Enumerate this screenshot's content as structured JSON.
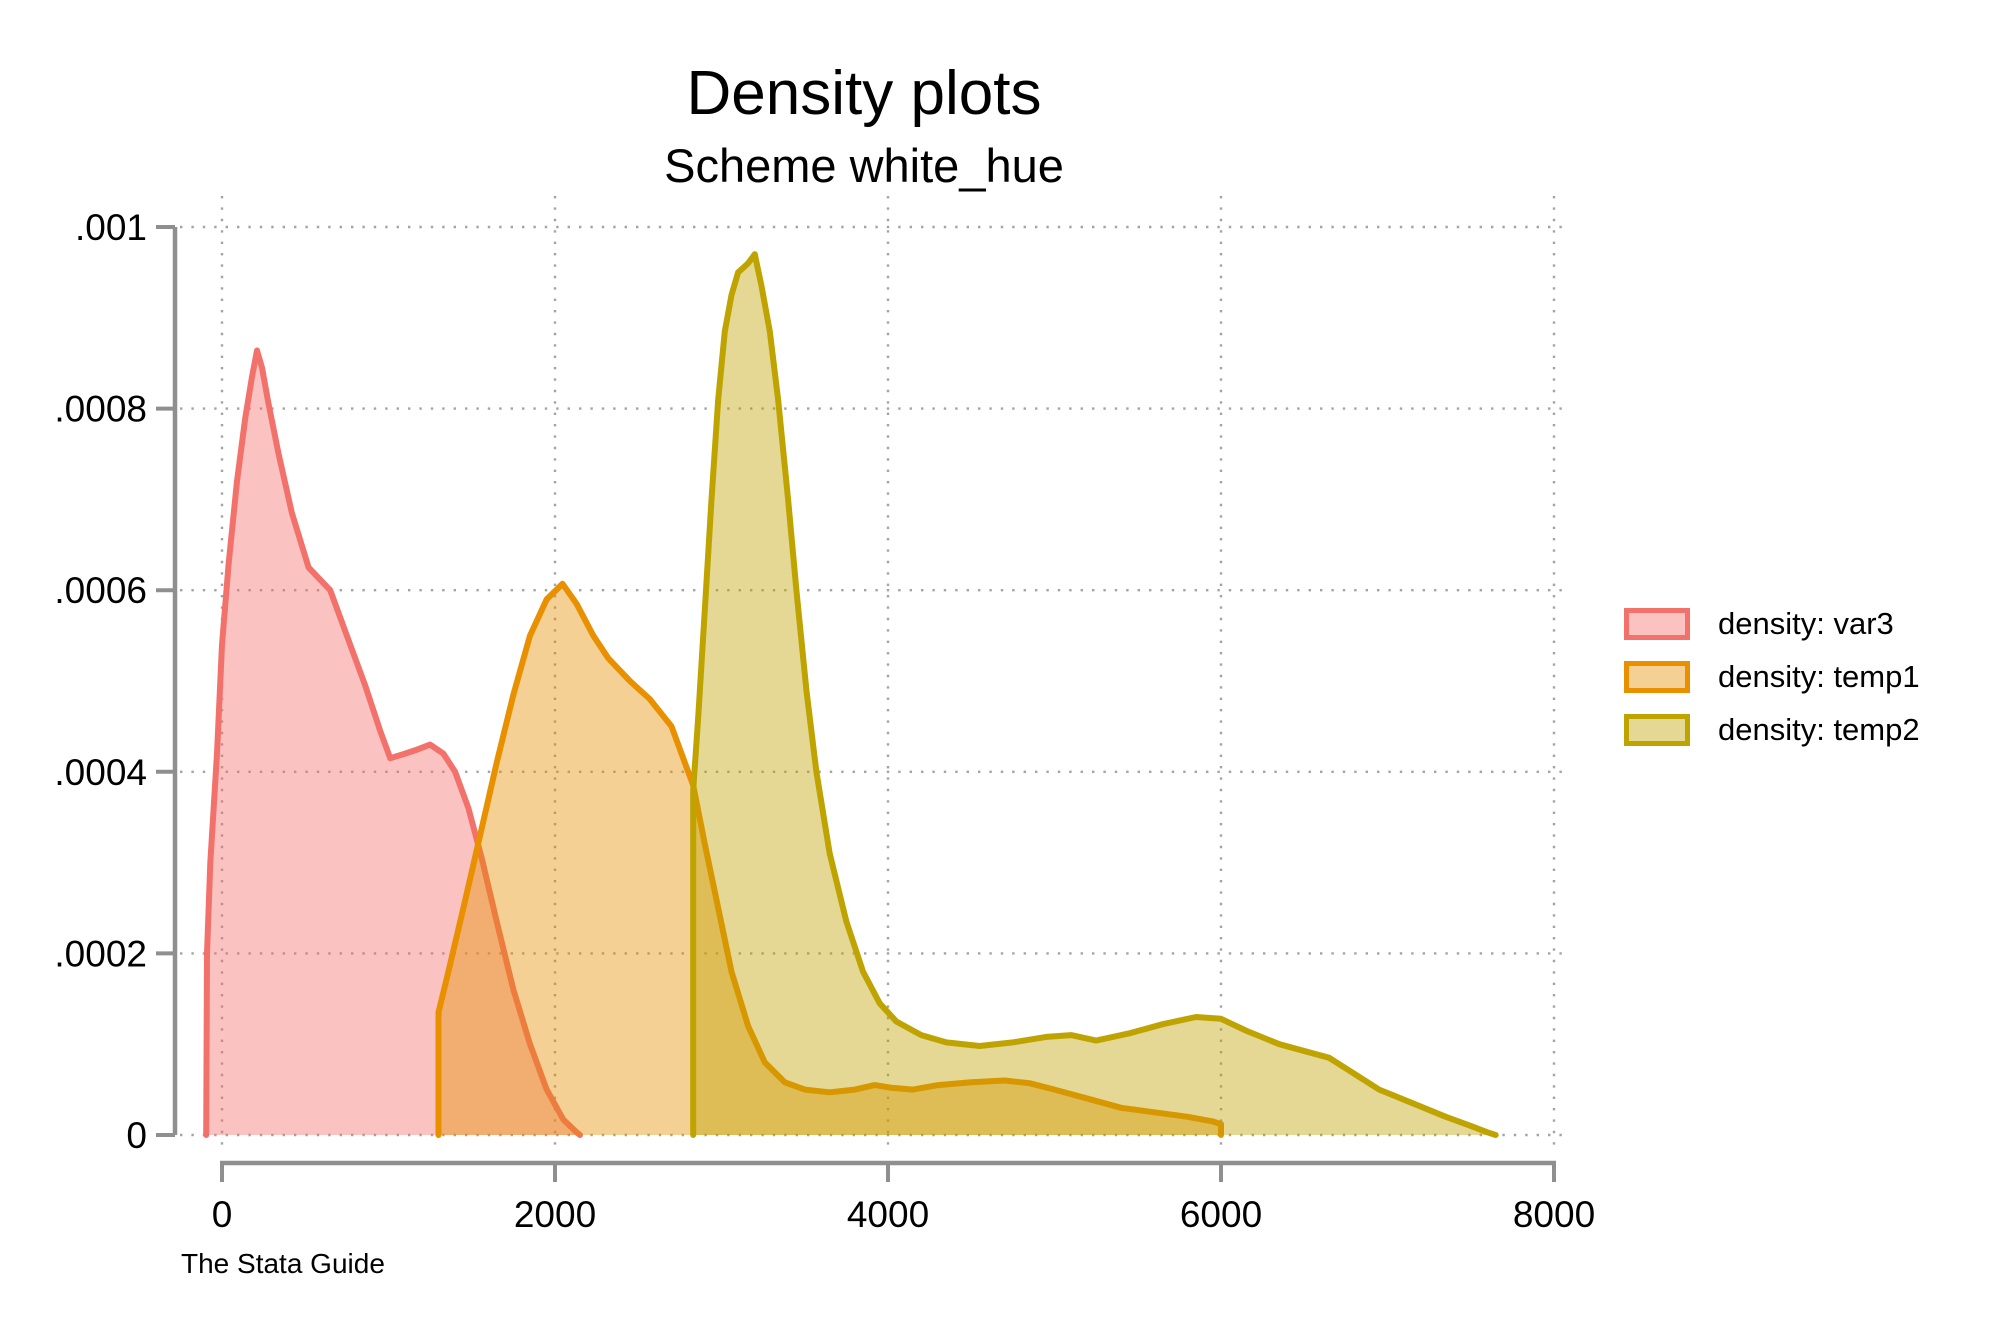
{
  "figure": {
    "title": "Density plots",
    "subtitle": "Scheme white_hue",
    "footer_note": "The Stata Guide",
    "background_color": "#ffffff",
    "axis_color": "#8f8f8f",
    "gridline_color": "#a3a3a3",
    "text_color": "#000000"
  },
  "chart_data": {
    "type": "area",
    "subtype": "kernel-density",
    "title": "Density plots",
    "subtitle": "Scheme white_hue",
    "xlabel": "",
    "ylabel": "",
    "xlim": [
      -100,
      8300
    ],
    "ylim": [
      0,
      0.001
    ],
    "grid": "dotted",
    "legend_position": "right-middle",
    "x_ticks": [
      {
        "value": 0,
        "label": "0"
      },
      {
        "value": 2000,
        "label": "2000"
      },
      {
        "value": 4000,
        "label": "4000"
      },
      {
        "value": 6000,
        "label": "6000"
      },
      {
        "value": 8000,
        "label": "8000"
      }
    ],
    "y_ticks": [
      {
        "value": 0.0,
        "label": "0"
      },
      {
        "value": 0.0002,
        "label": ".0002"
      },
      {
        "value": 0.0004,
        "label": ".0004"
      },
      {
        "value": 0.0006,
        "label": ".0006"
      },
      {
        "value": 0.0008,
        "label": ".0008"
      },
      {
        "value": 0.001,
        "label": ".001"
      }
    ],
    "series": [
      {
        "name": "var3",
        "legend_label": "density: var3",
        "line_color": "#f2716b",
        "fill_opacity": 0.42,
        "points": [
          [
            -95,
            0
          ],
          [
            -90,
            0.0002
          ],
          [
            -70,
            0.0003
          ],
          [
            -30,
            0.00042
          ],
          [
            0,
            0.00054
          ],
          [
            40,
            0.00063
          ],
          [
            90,
            0.00072
          ],
          [
            140,
            0.00079
          ],
          [
            180,
            0.000835
          ],
          [
            210,
            0.000864
          ],
          [
            240,
            0.000845
          ],
          [
            280,
            0.000805
          ],
          [
            340,
            0.00075
          ],
          [
            420,
            0.000685
          ],
          [
            520,
            0.000625
          ],
          [
            650,
            0.0006
          ],
          [
            760,
            0.000545
          ],
          [
            860,
            0.000495
          ],
          [
            950,
            0.000445
          ],
          [
            1010,
            0.000415
          ],
          [
            1100,
            0.00042
          ],
          [
            1180,
            0.000425
          ],
          [
            1250,
            0.00043
          ],
          [
            1330,
            0.00042
          ],
          [
            1400,
            0.0004
          ],
          [
            1480,
            0.00036
          ],
          [
            1560,
            0.000305
          ],
          [
            1650,
            0.000235
          ],
          [
            1750,
            0.00016
          ],
          [
            1850,
            0.0001
          ],
          [
            1950,
            5e-05
          ],
          [
            2050,
            1.7e-05
          ],
          [
            2130,
            3e-06
          ],
          [
            2150,
            0
          ]
        ]
      },
      {
        "name": "temp1",
        "legend_label": "density: temp1",
        "line_color": "#e89000",
        "fill_opacity": 0.42,
        "points": [
          [
            1300,
            0
          ],
          [
            1300,
            0.000135
          ],
          [
            1360,
            0.00018
          ],
          [
            1450,
            0.00025
          ],
          [
            1550,
            0.00033
          ],
          [
            1650,
            0.00041
          ],
          [
            1750,
            0.000485
          ],
          [
            1850,
            0.00055
          ],
          [
            1950,
            0.00059
          ],
          [
            2045,
            0.000607
          ],
          [
            2130,
            0.000585
          ],
          [
            2230,
            0.00055
          ],
          [
            2320,
            0.000525
          ],
          [
            2450,
            0.0005
          ],
          [
            2570,
            0.00048
          ],
          [
            2700,
            0.00045
          ],
          [
            2830,
            0.000385
          ],
          [
            2900,
            0.00032
          ],
          [
            2980,
            0.00025
          ],
          [
            3060,
            0.00018
          ],
          [
            3160,
            0.00012
          ],
          [
            3260,
            8e-05
          ],
          [
            3380,
            5.8e-05
          ],
          [
            3500,
            5e-05
          ],
          [
            3650,
            4.7e-05
          ],
          [
            3800,
            5e-05
          ],
          [
            3920,
            5.5e-05
          ],
          [
            4020,
            5.2e-05
          ],
          [
            4150,
            5e-05
          ],
          [
            4300,
            5.5e-05
          ],
          [
            4500,
            5.8e-05
          ],
          [
            4700,
            6e-05
          ],
          [
            4850,
            5.7e-05
          ],
          [
            5000,
            5e-05
          ],
          [
            5200,
            4e-05
          ],
          [
            5400,
            3e-05
          ],
          [
            5600,
            2.5e-05
          ],
          [
            5800,
            2e-05
          ],
          [
            5950,
            1.5e-05
          ],
          [
            6000,
            1.2e-05
          ],
          [
            6000,
            0
          ]
        ]
      },
      {
        "name": "temp2",
        "legend_label": "density: temp2",
        "line_color": "#bfa300",
        "fill_opacity": 0.42,
        "points": [
          [
            2830,
            0
          ],
          [
            2830,
            0.00038
          ],
          [
            2860,
            0.00046
          ],
          [
            2900,
            0.00058
          ],
          [
            2940,
            0.0007
          ],
          [
            2980,
            0.00081
          ],
          [
            3020,
            0.000885
          ],
          [
            3060,
            0.000925
          ],
          [
            3100,
            0.00095
          ],
          [
            3130,
            0.000955
          ],
          [
            3160,
            0.00096
          ],
          [
            3200,
            0.00097
          ],
          [
            3240,
            0.000935
          ],
          [
            3290,
            0.000885
          ],
          [
            3340,
            0.00081
          ],
          [
            3400,
            0.0007
          ],
          [
            3450,
            0.0006
          ],
          [
            3510,
            0.00049
          ],
          [
            3570,
            0.0004
          ],
          [
            3650,
            0.00031
          ],
          [
            3750,
            0.000235
          ],
          [
            3850,
            0.00018
          ],
          [
            3950,
            0.000145
          ],
          [
            4050,
            0.000125
          ],
          [
            4200,
            0.00011
          ],
          [
            4350,
            0.000102
          ],
          [
            4550,
            9.8e-05
          ],
          [
            4750,
            0.000102
          ],
          [
            4950,
            0.000108
          ],
          [
            5100,
            0.00011
          ],
          [
            5250,
            0.000104
          ],
          [
            5450,
            0.000112
          ],
          [
            5650,
            0.000122
          ],
          [
            5850,
            0.00013
          ],
          [
            6000,
            0.000128
          ],
          [
            6150,
            0.000115
          ],
          [
            6350,
            0.0001
          ],
          [
            6650,
            8.5e-05
          ],
          [
            6950,
            5e-05
          ],
          [
            7150,
            3.5e-05
          ],
          [
            7350,
            2e-05
          ],
          [
            7500,
            1e-05
          ],
          [
            7600,
            3e-06
          ],
          [
            7650,
            0
          ]
        ]
      }
    ]
  }
}
